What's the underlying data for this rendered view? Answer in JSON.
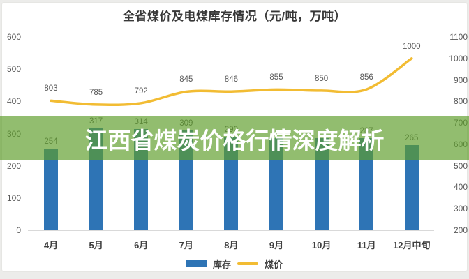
{
  "title": "全省煤价及电煤库存情况（元/吨，万吨）",
  "banner": {
    "text": "江西省煤炭价格行情深度解析",
    "background_color": "#5F9D2B",
    "background_opacity": 0.68,
    "text_color": "#FFFFFF"
  },
  "legend": {
    "items": [
      {
        "label": "库存",
        "type": "bar",
        "color": "#2E74B5"
      },
      {
        "label": "煤价",
        "type": "line",
        "color": "#F2BC33"
      }
    ],
    "position": "bottom"
  },
  "chart_data": {
    "type": "bar+line combo",
    "title": "全省煤价及电煤库存情况（元/吨，万吨）",
    "categories": [
      "4月",
      "5月",
      "6月",
      "7月",
      "8月",
      "9月",
      "10月",
      "11月",
      "12月中旬"
    ],
    "series": [
      {
        "name": "库存",
        "type": "bar",
        "axis": "left",
        "color": "#2E74B5",
        "values": [
          254,
          317,
          314,
          309,
          290,
          285,
          285,
          287,
          265
        ],
        "data_labels": [
          "254",
          "317",
          "314",
          "309",
          "290",
          "",
          "",
          "287",
          "265"
        ]
      },
      {
        "name": "煤价",
        "type": "line",
        "axis": "right",
        "color": "#F2BC33",
        "values": [
          803,
          785,
          792,
          845,
          846,
          855,
          850,
          856,
          1000
        ],
        "data_labels": [
          "803",
          "785",
          "792",
          "845",
          "846",
          "855",
          "850",
          "856",
          "1000"
        ]
      }
    ],
    "left_axis": {
      "min": 0,
      "max": 600,
      "step": 100,
      "ticks": [
        600,
        500,
        400,
        300,
        200,
        100,
        0
      ]
    },
    "right_axis": {
      "min": 200,
      "max": 1100,
      "step": 100,
      "ticks": [
        1100,
        1000,
        900,
        800,
        700,
        600,
        500,
        400,
        300,
        200
      ]
    },
    "grid": false,
    "legend_position": "bottom"
  }
}
